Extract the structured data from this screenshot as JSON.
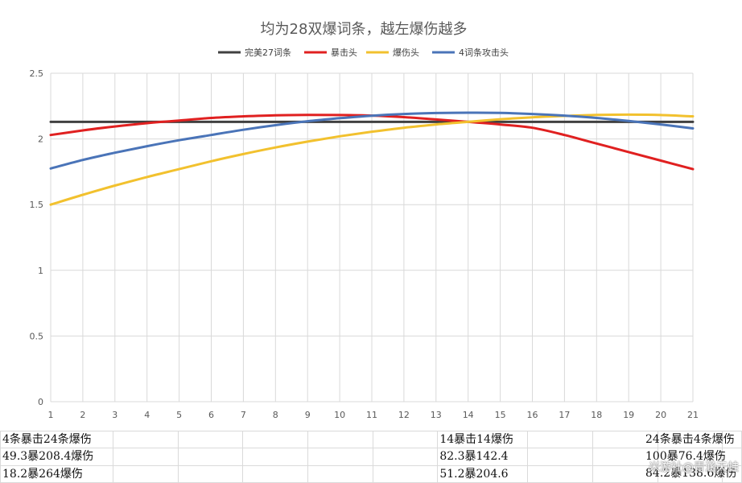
{
  "chart_data": {
    "type": "line",
    "title": "均为28双爆词条，越左爆伤越多",
    "x": [
      1,
      2,
      3,
      4,
      5,
      6,
      7,
      8,
      9,
      10,
      11,
      12,
      13,
      14,
      15,
      16,
      17,
      18,
      19,
      20,
      21
    ],
    "ylim": [
      0,
      2.5
    ],
    "yticks": [
      "0",
      "0.5",
      "1",
      "1.5",
      "2",
      "2.5"
    ],
    "xlabel": "",
    "ylabel": "",
    "legend_position": "top-center",
    "series": [
      {
        "name": "完美27词条",
        "color": "#404040",
        "values": [
          2.13,
          2.13,
          2.13,
          2.13,
          2.13,
          2.13,
          2.13,
          2.13,
          2.13,
          2.13,
          2.13,
          2.13,
          2.13,
          2.13,
          2.13,
          2.13,
          2.13,
          2.13,
          2.13,
          2.13,
          2.13
        ]
      },
      {
        "name": "暴击头",
        "color": "#e02020",
        "values": [
          2.03,
          2.065,
          2.095,
          2.12,
          2.14,
          2.16,
          2.172,
          2.18,
          2.183,
          2.182,
          2.178,
          2.166,
          2.148,
          2.13,
          2.11,
          2.085,
          2.03,
          1.965,
          1.9,
          1.835,
          1.77
        ]
      },
      {
        "name": "爆伤头",
        "color": "#f2c12e",
        "values": [
          1.5,
          1.575,
          1.645,
          1.71,
          1.77,
          1.83,
          1.885,
          1.935,
          1.98,
          2.02,
          2.055,
          2.085,
          2.11,
          2.13,
          2.15,
          2.165,
          2.175,
          2.183,
          2.185,
          2.182,
          2.172
        ]
      },
      {
        "name": "4词条攻击头",
        "color": "#4a74b8",
        "values": [
          1.775,
          1.84,
          1.895,
          1.945,
          1.99,
          2.03,
          2.07,
          2.105,
          2.135,
          2.158,
          2.177,
          2.19,
          2.197,
          2.2,
          2.198,
          2.19,
          2.178,
          2.16,
          2.137,
          2.11,
          2.08
        ]
      }
    ]
  },
  "table": [
    [
      "4条暴击24条爆伤",
      "14暴击14爆伤",
      "24条暴击4条爆伤"
    ],
    [
      "49.3暴208.4爆伤",
      "82.3暴142.4",
      "100暴76.4爆伤"
    ],
    [
      "18.2暴264爆伤",
      "51.2暴204.6",
      "84.2暴138.6爆伤"
    ]
  ],
  "watermark": "米游社@青涵天蛙"
}
